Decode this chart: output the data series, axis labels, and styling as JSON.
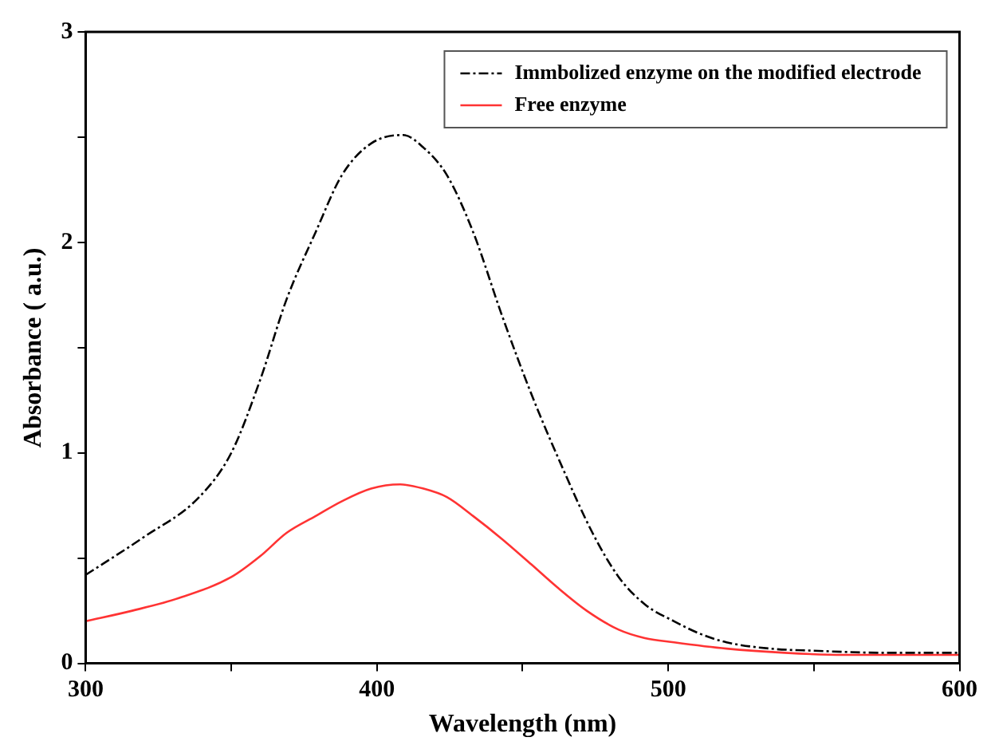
{
  "chart_data": {
    "type": "line",
    "xlabel": "Wavelength (nm)",
    "ylabel": "Absorbance ( a.u.)",
    "xlim": [
      300,
      600
    ],
    "xticks": [
      300,
      {
        "value": 350,
        "label": null
      },
      400,
      {
        "value": 450,
        "label": null
      },
      500,
      {
        "value": 550,
        "label": null
      },
      600
    ],
    "ylim": [
      0,
      3
    ],
    "yticks": [
      0,
      {
        "value": 0.5,
        "label": null
      },
      1,
      {
        "value": 1.5,
        "label": null
      },
      2,
      {
        "value": 2.5,
        "label": null
      },
      3
    ],
    "grid": false,
    "legend": "top right",
    "marker": "none",
    "series": [
      {
        "name": "Immbolized enzyme on the modified electrode",
        "color": "#000000",
        "line_style": "dashed",
        "x": [
          300,
          320,
          339,
          350,
          360,
          369,
          379,
          388,
          398,
          409,
          416,
          424,
          433,
          443,
          453,
          464,
          474,
          483,
          492,
          502,
          511,
          520,
          535,
          550,
          575,
          600
        ],
        "values": [
          0.42,
          0.6,
          0.79,
          1.0,
          1.35,
          1.73,
          2.05,
          2.32,
          2.47,
          2.51,
          2.45,
          2.32,
          2.05,
          1.65,
          1.28,
          0.92,
          0.62,
          0.41,
          0.28,
          0.2,
          0.14,
          0.1,
          0.07,
          0.06,
          0.05,
          0.05
        ]
      },
      {
        "name": "Free enzyme",
        "color": "#ff3333",
        "line_style": "solid",
        "x": [
          300,
          316,
          332,
          350,
          360,
          369,
          379,
          388,
          398,
          408,
          416,
          424,
          433,
          443,
          453,
          462,
          472,
          483,
          492,
          502,
          520,
          540,
          560,
          600
        ],
        "values": [
          0.2,
          0.25,
          0.31,
          0.41,
          0.51,
          0.62,
          0.7,
          0.77,
          0.83,
          0.85,
          0.83,
          0.79,
          0.7,
          0.59,
          0.47,
          0.36,
          0.25,
          0.16,
          0.12,
          0.1,
          0.07,
          0.05,
          0.04,
          0.04
        ]
      }
    ]
  }
}
